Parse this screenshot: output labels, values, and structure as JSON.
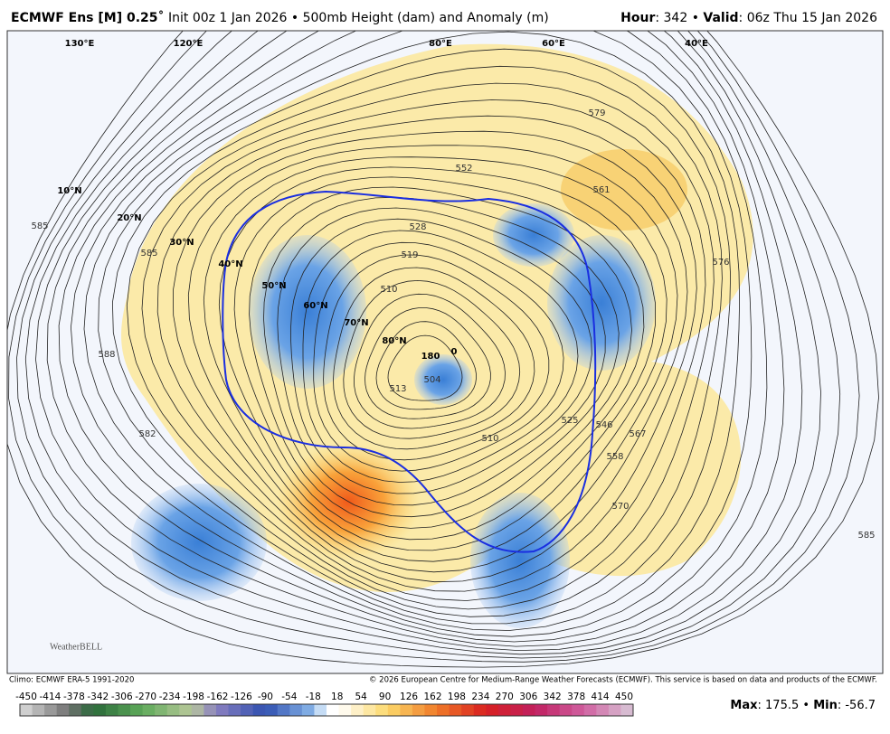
{
  "header": {
    "model": "ECMWF Ens [M] 0.25˚",
    "description": "Init 00z 1 Jan 2026 • 500mb Height (dam) and Anomaly (m)",
    "hour_label": "Hour",
    "hour": ": 342 • ",
    "valid_label": "Valid",
    "valid": ": 06z Thu 15 Jan 2026"
  },
  "map": {
    "latitude_labels": [
      "10°N",
      "20°N",
      "30°N",
      "40°N",
      "50°N",
      "60°N",
      "70°N",
      "80°N"
    ],
    "longitude_labels": [
      "180",
      "0",
      "120°E",
      "130°E",
      "80°E",
      "60°E",
      "40°E"
    ],
    "contour_labels": [
      "552",
      "528",
      "519",
      "510",
      "504",
      "513",
      "510",
      "525",
      "546",
      "558",
      "567",
      "570",
      "576",
      "579",
      "561",
      "585",
      "585",
      "588",
      "582",
      "585"
    ],
    "logo": "WeatherBELL"
  },
  "footer": {
    "climo": "Climo: ECMWF ERA-5 1991-2020",
    "copyright": "© 2026 European Centre for Medium-Range Weather Forecasts (ECMWF). This service is based on data and products of the ECMWF."
  },
  "colorbar": {
    "ticks": [
      "-450",
      "-414",
      "-378",
      "-342",
      "-306",
      "-270",
      "-234",
      "-198",
      "-162",
      "-126",
      "-90",
      "-54",
      "-18",
      "18",
      "54",
      "90",
      "126",
      "162",
      "198",
      "234",
      "270",
      "306",
      "342",
      "378",
      "414",
      "450"
    ]
  },
  "stats": {
    "max_label": "Max",
    "max": ": 175.5 • ",
    "min_label": "Min",
    "min": ": -56.7"
  }
}
